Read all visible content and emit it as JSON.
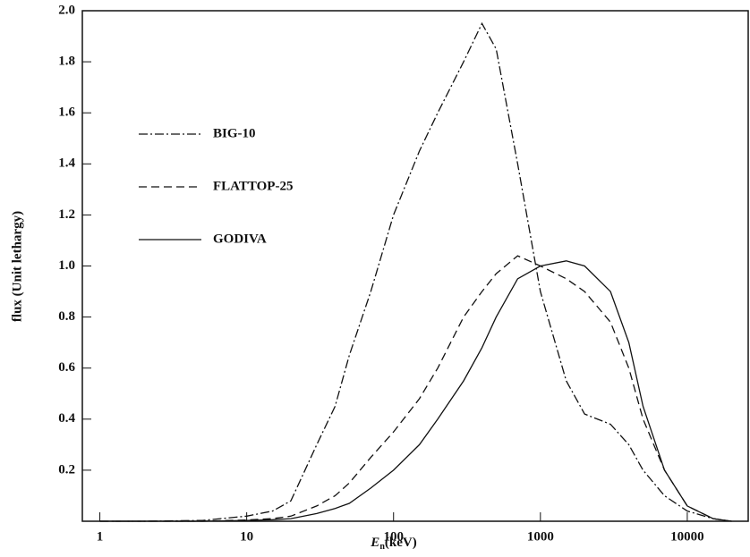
{
  "chart_data": {
    "type": "line",
    "xlabel": [
      "E",
      "n",
      "(keV)"
    ],
    "ylabel": "flux (Unit lethargy)",
    "log_x": true,
    "xlim": [
      0.76,
      26000
    ],
    "xticks": [
      1,
      10,
      100,
      1000,
      10000
    ],
    "ylim": [
      0,
      2
    ],
    "yticks": [
      0.2,
      0.4,
      0.6,
      0.8,
      {
        "value": 1,
        "label": "1.0"
      },
      1.2,
      1.4,
      1.6,
      1.8,
      {
        "value": 2,
        "label": "2.0"
      }
    ],
    "legend": "left",
    "x": [
      1,
      2,
      5,
      10,
      15,
      20,
      30,
      40,
      50,
      70,
      100,
      150,
      200,
      300,
      400,
      500,
      700,
      1000,
      1500,
      2000,
      3000,
      4000,
      5000,
      7000,
      10000,
      15000,
      20000
    ],
    "series": [
      {
        "name": "BIG-10",
        "color": "#111111",
        "dash": "dashdot",
        "values": [
          0,
          0,
          0.003,
          0.02,
          0.04,
          0.08,
          0.3,
          0.45,
          0.65,
          0.9,
          1.2,
          1.45,
          1.6,
          1.8,
          1.95,
          1.85,
          1.4,
          0.9,
          0.55,
          0.42,
          0.38,
          0.3,
          0.2,
          0.1,
          0.04,
          0.01,
          0
        ]
      },
      {
        "name": "FLATTOP-25",
        "color": "#111111",
        "dash": "dashed",
        "values": [
          0,
          0,
          0,
          0.005,
          0.01,
          0.02,
          0.06,
          0.1,
          0.15,
          0.25,
          0.35,
          0.48,
          0.6,
          0.8,
          0.9,
          0.97,
          1.04,
          1.0,
          0.95,
          0.9,
          0.78,
          0.6,
          0.4,
          0.2,
          0.06,
          0.01,
          0
        ]
      },
      {
        "name": "GODIVA",
        "color": "#111111",
        "dash": "solid",
        "values": [
          0,
          0,
          0,
          0.003,
          0.006,
          0.01,
          0.03,
          0.05,
          0.07,
          0.13,
          0.2,
          0.3,
          0.4,
          0.55,
          0.68,
          0.8,
          0.95,
          1.0,
          1.02,
          1.0,
          0.9,
          0.7,
          0.45,
          0.2,
          0.06,
          0.01,
          0
        ]
      }
    ]
  }
}
